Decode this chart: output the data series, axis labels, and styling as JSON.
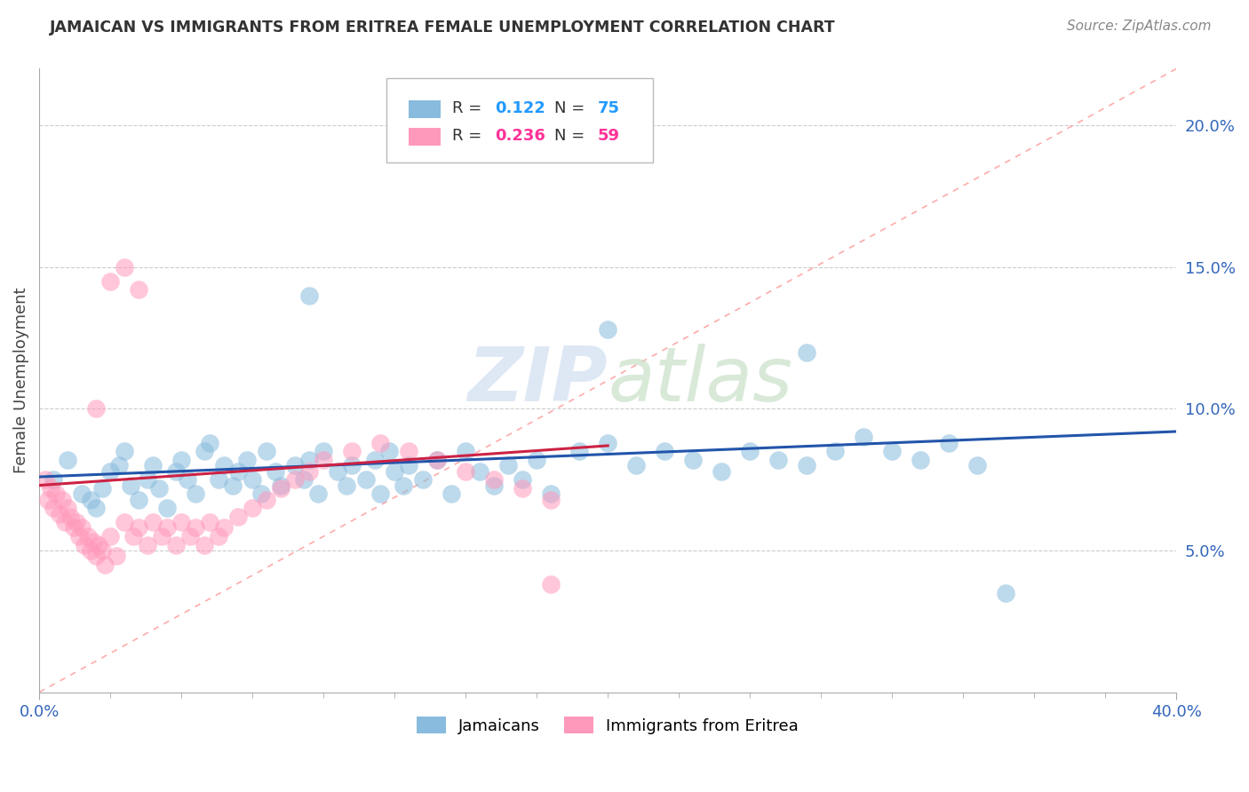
{
  "title": "JAMAICAN VS IMMIGRANTS FROM ERITREA FEMALE UNEMPLOYMENT CORRELATION CHART",
  "source": "Source: ZipAtlas.com",
  "ylabel": "Female Unemployment",
  "right_yticks": [
    "5.0%",
    "10.0%",
    "15.0%",
    "20.0%"
  ],
  "right_ytick_vals": [
    0.05,
    0.1,
    0.15,
    0.2
  ],
  "xlim": [
    0.0,
    0.4
  ],
  "ylim": [
    0.0,
    0.22
  ],
  "legend1_R": "0.122",
  "legend1_N": "75",
  "legend2_R": "0.236",
  "legend2_N": "59",
  "blue_color": "#88bbdd",
  "pink_color": "#ff99bb",
  "trend_blue": "#2255aa",
  "trend_pink": "#cc2244",
  "diag_color": "#ffaaaa",
  "blue_value_color": "#2299ff",
  "pink_value_color": "#ff3399",
  "jamaicans_x": [
    0.005,
    0.01,
    0.015,
    0.018,
    0.02,
    0.022,
    0.025,
    0.028,
    0.03,
    0.032,
    0.035,
    0.038,
    0.04,
    0.042,
    0.045,
    0.048,
    0.05,
    0.052,
    0.055,
    0.058,
    0.06,
    0.063,
    0.065,
    0.068,
    0.07,
    0.073,
    0.075,
    0.078,
    0.08,
    0.083,
    0.085,
    0.09,
    0.093,
    0.095,
    0.098,
    0.1,
    0.105,
    0.108,
    0.11,
    0.115,
    0.118,
    0.12,
    0.123,
    0.125,
    0.128,
    0.13,
    0.135,
    0.14,
    0.145,
    0.15,
    0.155,
    0.16,
    0.165,
    0.17,
    0.175,
    0.18,
    0.19,
    0.2,
    0.21,
    0.22,
    0.23,
    0.24,
    0.25,
    0.26,
    0.27,
    0.28,
    0.29,
    0.3,
    0.31,
    0.32,
    0.33,
    0.095,
    0.2,
    0.27,
    0.34
  ],
  "jamaicans_y": [
    0.075,
    0.082,
    0.07,
    0.068,
    0.065,
    0.072,
    0.078,
    0.08,
    0.085,
    0.073,
    0.068,
    0.075,
    0.08,
    0.072,
    0.065,
    0.078,
    0.082,
    0.075,
    0.07,
    0.085,
    0.088,
    0.075,
    0.08,
    0.073,
    0.078,
    0.082,
    0.075,
    0.07,
    0.085,
    0.078,
    0.073,
    0.08,
    0.075,
    0.082,
    0.07,
    0.085,
    0.078,
    0.073,
    0.08,
    0.075,
    0.082,
    0.07,
    0.085,
    0.078,
    0.073,
    0.08,
    0.075,
    0.082,
    0.07,
    0.085,
    0.078,
    0.073,
    0.08,
    0.075,
    0.082,
    0.07,
    0.085,
    0.088,
    0.08,
    0.085,
    0.082,
    0.078,
    0.085,
    0.082,
    0.08,
    0.085,
    0.09,
    0.085,
    0.082,
    0.088,
    0.08,
    0.14,
    0.128,
    0.12,
    0.035
  ],
  "eritrea_x": [
    0.002,
    0.003,
    0.004,
    0.005,
    0.006,
    0.007,
    0.008,
    0.009,
    0.01,
    0.011,
    0.012,
    0.013,
    0.014,
    0.015,
    0.016,
    0.017,
    0.018,
    0.019,
    0.02,
    0.021,
    0.022,
    0.023,
    0.025,
    0.027,
    0.03,
    0.033,
    0.035,
    0.038,
    0.04,
    0.043,
    0.045,
    0.048,
    0.05,
    0.053,
    0.055,
    0.058,
    0.06,
    0.063,
    0.065,
    0.07,
    0.075,
    0.08,
    0.085,
    0.09,
    0.095,
    0.1,
    0.11,
    0.12,
    0.13,
    0.14,
    0.15,
    0.16,
    0.17,
    0.18,
    0.025,
    0.03,
    0.035,
    0.18,
    0.02
  ],
  "eritrea_y": [
    0.075,
    0.068,
    0.072,
    0.065,
    0.07,
    0.063,
    0.068,
    0.06,
    0.065,
    0.062,
    0.058,
    0.06,
    0.055,
    0.058,
    0.052,
    0.055,
    0.05,
    0.053,
    0.048,
    0.052,
    0.05,
    0.045,
    0.055,
    0.048,
    0.06,
    0.055,
    0.058,
    0.052,
    0.06,
    0.055,
    0.058,
    0.052,
    0.06,
    0.055,
    0.058,
    0.052,
    0.06,
    0.055,
    0.058,
    0.062,
    0.065,
    0.068,
    0.072,
    0.075,
    0.078,
    0.082,
    0.085,
    0.088,
    0.085,
    0.082,
    0.078,
    0.075,
    0.072,
    0.068,
    0.145,
    0.15,
    0.142,
    0.038,
    0.1
  ],
  "blue_trend_x": [
    0.0,
    0.4
  ],
  "blue_trend_y": [
    0.076,
    0.092
  ],
  "pink_trend_x": [
    0.0,
    0.2
  ],
  "pink_trend_y": [
    0.073,
    0.087
  ]
}
